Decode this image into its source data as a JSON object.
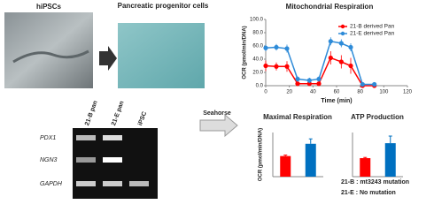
{
  "figure": {
    "ipsc_label": "hiPSCs",
    "pancreatic_label": "Pancreatic progenitor cells",
    "gel": {
      "lanes": [
        "21-B pan",
        "21-E pan",
        "iPSC"
      ],
      "rows": [
        "PDX1",
        "NGN3",
        "GAPDH"
      ]
    },
    "method": "Seahorse",
    "notes": [
      "21-B : mt3243 mutation",
      "21-E : No mutation"
    ]
  },
  "chart_data": [
    {
      "type": "line",
      "title": "Mitochondrial Respiration",
      "xlabel": "Time (min)",
      "ylabel": "OCR (pmol/min/DNA)",
      "x": [
        0,
        9,
        18,
        27,
        37,
        45,
        55,
        64,
        72,
        82,
        92
      ],
      "series": [
        {
          "name": "21-B derived Pan",
          "color": "#ff0000",
          "values": [
            30,
            29,
            29,
            3,
            3,
            3,
            42,
            36,
            30,
            0,
            0
          ],
          "errors": [
            8,
            6,
            8,
            3,
            3,
            3,
            10,
            10,
            12,
            2,
            2
          ]
        },
        {
          "name": "21-E derived Pan",
          "color": "#2e8bd8",
          "values": [
            57,
            58,
            56,
            10,
            8,
            10,
            67,
            64,
            58,
            2,
            2
          ],
          "errors": [
            5,
            5,
            6,
            4,
            4,
            4,
            6,
            6,
            6,
            3,
            3
          ]
        }
      ],
      "xlim": [
        0,
        120
      ],
      "xticks": [
        0,
        20,
        40,
        60,
        80,
        100,
        120
      ],
      "ylim": [
        0,
        100
      ],
      "yticks": [
        {
          "value": 0,
          "label": "0.0"
        },
        {
          "value": 20,
          "label": "20.0"
        },
        {
          "value": 40,
          "label": "40.0"
        },
        {
          "value": 60,
          "label": "60.0"
        },
        {
          "value": 80,
          "label": "80.0"
        },
        {
          "value": 100,
          "label": "100.0"
        }
      ],
      "legend": "top-right"
    },
    {
      "type": "bar",
      "title": "Maximal Respiration",
      "ylabel": "OCR (pmol/min/DNA)",
      "categories": [
        null,
        null
      ],
      "values": [
        42,
        67
      ],
      "errors": [
        2,
        10
      ],
      "colors": [
        "#ff0000",
        "#0070c0"
      ],
      "ylim": [
        0,
        90
      ]
    },
    {
      "type": "bar",
      "title": "ATP Production",
      "categories": [
        null,
        null
      ],
      "values": [
        26,
        47
      ],
      "errors": [
        1,
        10
      ],
      "colors": [
        "#ff0000",
        "#0070c0"
      ],
      "ylim": [
        0,
        62
      ]
    }
  ]
}
